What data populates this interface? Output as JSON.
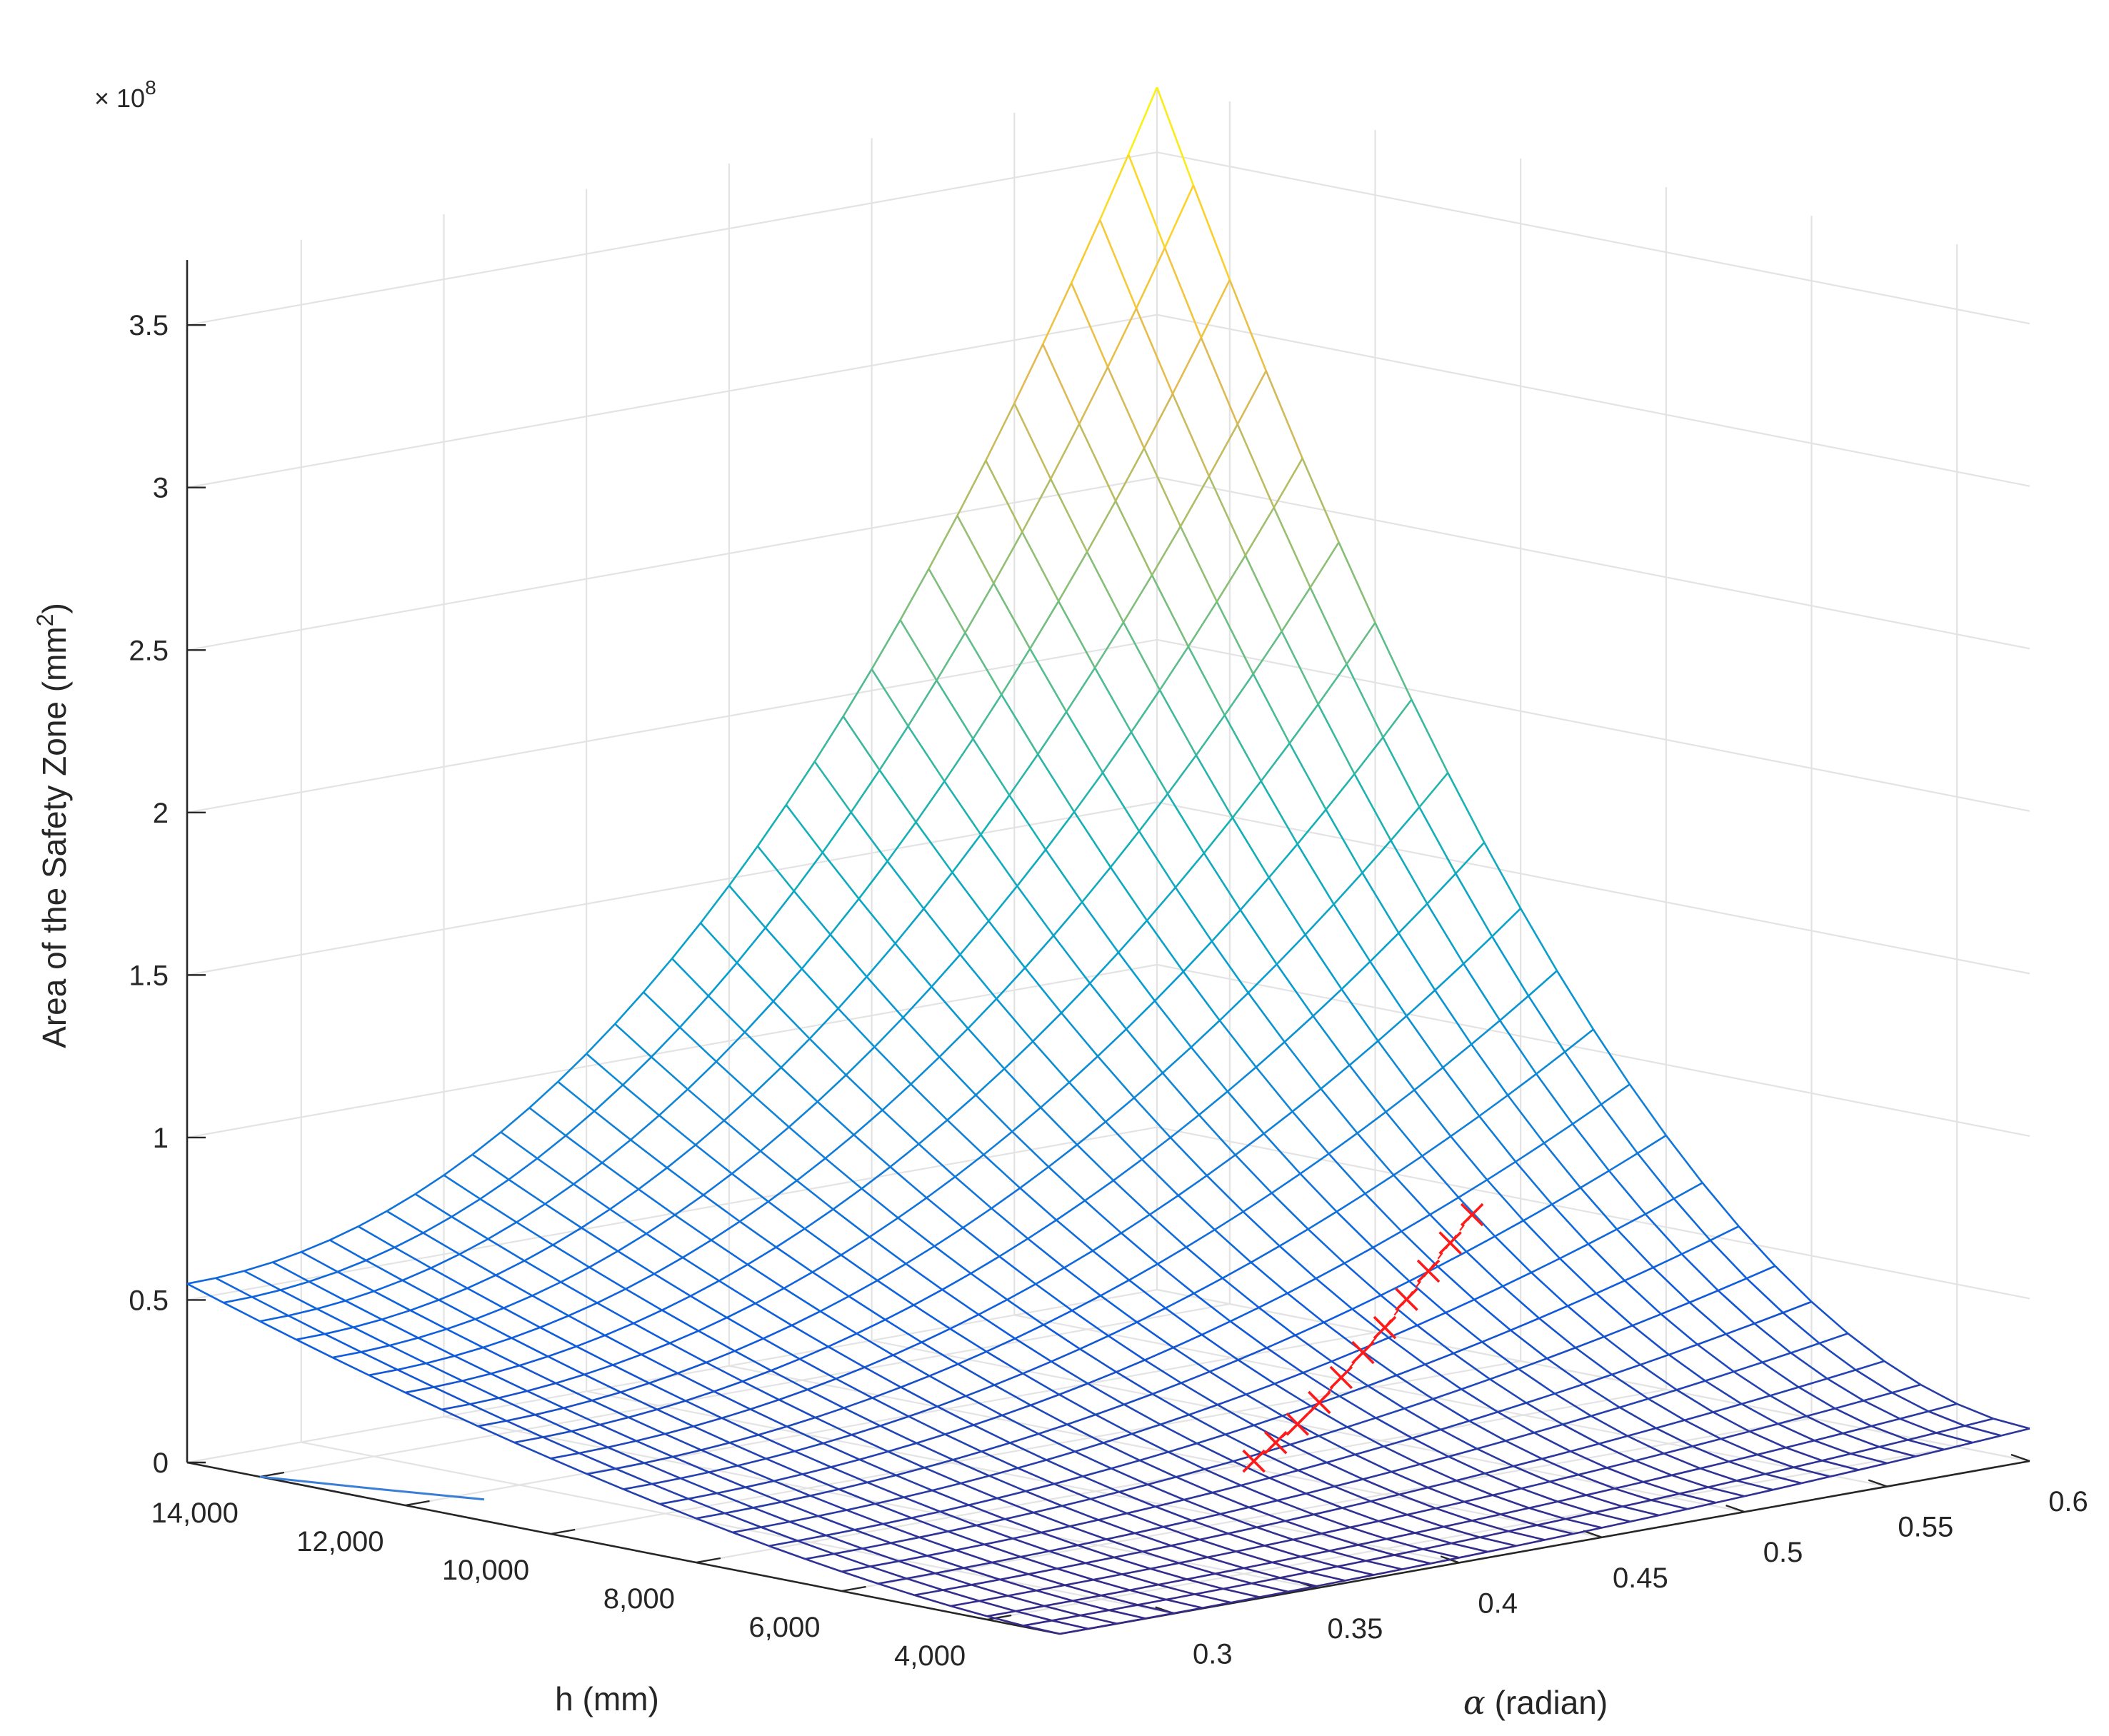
{
  "chart_data": {
    "type": "surface",
    "title": "",
    "zlabel": {
      "main": "Area of the Safety Zone (mm",
      "sup": "2",
      "end": ")"
    },
    "xlabel": {
      "symbol": "α",
      "text": " (radian)"
    },
    "ylabel": "h (mm)",
    "z_exponent": {
      "base": "× 10",
      "sup": "8"
    },
    "x_range": [
      0.26,
      0.6
    ],
    "y_range": [
      3000,
      15000
    ],
    "z_range": [
      0,
      3.7
    ],
    "x_ticks": [
      0.3,
      0.35,
      0.4,
      0.45,
      0.5,
      0.55,
      0.6
    ],
    "x_tick_labels": [
      "0.3",
      "0.35",
      "0.4",
      "0.45",
      "0.5",
      "0.55",
      "0.6"
    ],
    "y_ticks": [
      4000,
      6000,
      8000,
      10000,
      12000,
      14000
    ],
    "y_tick_labels": [
      "4,000",
      "6,000",
      "8,000",
      "10,000",
      "12,000",
      "14,000"
    ],
    "z_ticks": [
      0,
      0.5,
      1,
      1.5,
      2,
      2.5,
      3,
      3.5
    ],
    "z_tick_labels": [
      "0",
      "0.5",
      "1",
      "1.5",
      "2",
      "2.5",
      "3",
      "3.5"
    ],
    "grid": true,
    "colormap": "parula",
    "mesh_x_values": [
      0.26,
      0.27,
      0.28,
      0.29,
      0.3,
      0.31,
      0.32,
      0.33,
      0.34,
      0.35,
      0.36,
      0.37,
      0.38,
      0.39,
      0.4,
      0.41,
      0.42,
      0.43,
      0.44,
      0.45,
      0.46,
      0.47,
      0.48,
      0.49,
      0.5,
      0.51,
      0.52,
      0.53,
      0.54,
      0.55,
      0.56,
      0.57,
      0.58,
      0.59,
      0.6
    ],
    "mesh_y_values": [
      3000,
      3500,
      4000,
      4500,
      5000,
      5500,
      6000,
      6500,
      7000,
      7500,
      8000,
      8500,
      9000,
      9500,
      10000,
      10500,
      11000,
      11500,
      12000,
      12500,
      13000,
      13500,
      14000,
      14500,
      15000
    ],
    "surface_corners_z": {
      "alpha_0.26_h_3000": 0.0,
      "alpha_0.26_h_15000": 0.55,
      "alpha_0.60_h_3000": 0.1,
      "alpha_0.60_h_15000": 3.7
    },
    "highlight_series": {
      "marker": "x",
      "color": "#ff1a1a",
      "points": [
        {
          "x": 0.43,
          "y": 4000,
          "z": 0.98
        },
        {
          "x": 0.43,
          "y": 4300,
          "z": 0.88
        },
        {
          "x": 0.43,
          "y": 4600,
          "z": 0.78
        },
        {
          "x": 0.43,
          "y": 4900,
          "z": 0.68
        },
        {
          "x": 0.43,
          "y": 5200,
          "z": 0.58
        },
        {
          "x": 0.43,
          "y": 5500,
          "z": 0.49
        },
        {
          "x": 0.43,
          "y": 5800,
          "z": 0.4
        },
        {
          "x": 0.43,
          "y": 6100,
          "z": 0.31
        },
        {
          "x": 0.43,
          "y": 6400,
          "z": 0.23
        },
        {
          "x": 0.43,
          "y": 6700,
          "z": 0.16
        },
        {
          "x": 0.43,
          "y": 7000,
          "z": 0.09
        }
      ]
    },
    "floor_curve": {
      "color": "#3a7fd5",
      "points": [
        {
          "x": 0.26,
          "y": 14000
        },
        {
          "x": 0.27,
          "y": 12800
        },
        {
          "x": 0.28,
          "y": 11700
        }
      ]
    }
  }
}
